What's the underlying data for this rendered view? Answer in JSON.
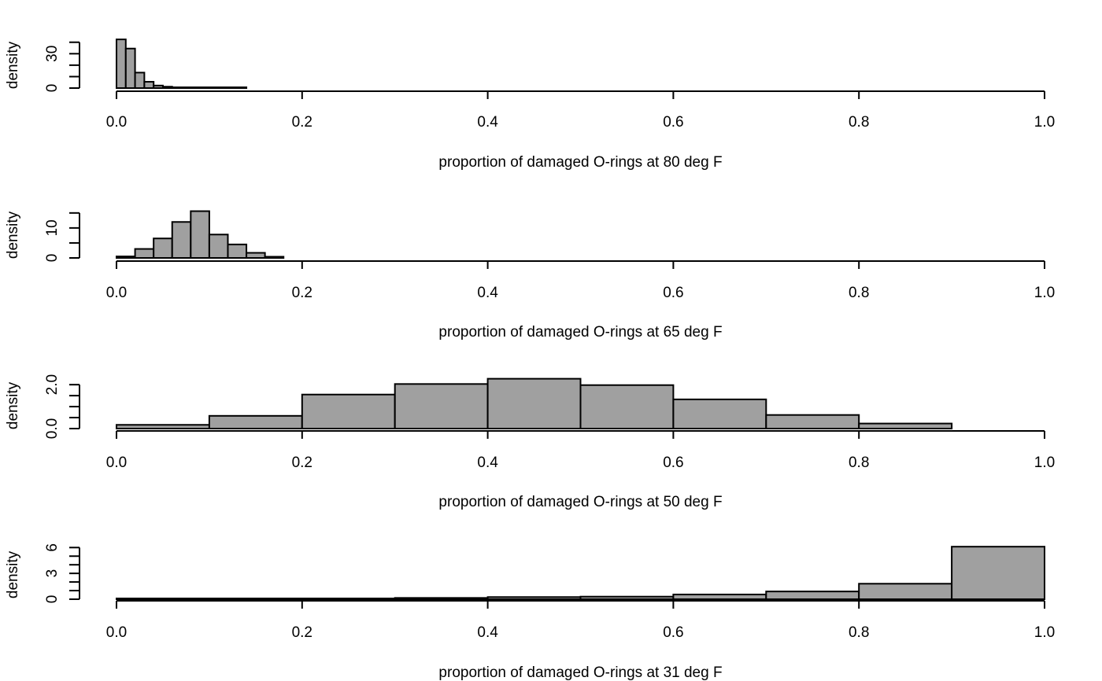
{
  "colors": {
    "bar_fill": "#a0a0a0",
    "bar_stroke": "#000000",
    "axis": "#000000"
  },
  "chart_data": [
    {
      "type": "bar",
      "xlabel": "proportion of damaged O-rings at 80 deg F",
      "ylabel": "density",
      "xlim": [
        0,
        1
      ],
      "ylim": [
        0,
        46
      ],
      "xticks": [
        "0.0",
        "0.2",
        "0.4",
        "0.6",
        "0.8",
        "1.0"
      ],
      "yticks": [
        "0",
        "30"
      ],
      "ytick_values": [
        0,
        30
      ],
      "ytick_minor": [
        0,
        10,
        20,
        30,
        40
      ],
      "bins": [
        {
          "x0": 0.0,
          "x1": 0.01,
          "y": 42.5
        },
        {
          "x0": 0.01,
          "x1": 0.02,
          "y": 34.5
        },
        {
          "x0": 0.02,
          "x1": 0.03,
          "y": 13.5
        },
        {
          "x0": 0.03,
          "x1": 0.04,
          "y": 5.5
        },
        {
          "x0": 0.04,
          "x1": 0.05,
          "y": 2.2
        },
        {
          "x0": 0.05,
          "x1": 0.06,
          "y": 1.2
        },
        {
          "x0": 0.06,
          "x1": 0.07,
          "y": 0.6
        },
        {
          "x0": 0.07,
          "x1": 0.08,
          "y": 0.5
        },
        {
          "x0": 0.08,
          "x1": 0.09,
          "y": 0.4
        },
        {
          "x0": 0.09,
          "x1": 0.1,
          "y": 0.3
        },
        {
          "x0": 0.1,
          "x1": 0.11,
          "y": 0.3
        },
        {
          "x0": 0.11,
          "x1": 0.12,
          "y": 0.3
        },
        {
          "x0": 0.12,
          "x1": 0.13,
          "y": 0.3
        },
        {
          "x0": 0.13,
          "x1": 0.14,
          "y": 0.3
        }
      ]
    },
    {
      "type": "bar",
      "xlabel": "proportion of damaged O-rings at 65 deg F",
      "ylabel": "density",
      "xlim": [
        0,
        1
      ],
      "ylim": [
        0,
        16
      ],
      "xticks": [
        "0.0",
        "0.2",
        "0.4",
        "0.6",
        "0.8",
        "1.0"
      ],
      "yticks": [
        "0",
        "10"
      ],
      "ytick_values": [
        0,
        10
      ],
      "ytick_minor": [
        0,
        5,
        10,
        15
      ],
      "bins": [
        {
          "x0": 0.0,
          "x1": 0.02,
          "y": 0.5
        },
        {
          "x0": 0.02,
          "x1": 0.04,
          "y": 3.0
        },
        {
          "x0": 0.04,
          "x1": 0.06,
          "y": 6.5
        },
        {
          "x0": 0.06,
          "x1": 0.08,
          "y": 12.0
        },
        {
          "x0": 0.08,
          "x1": 0.1,
          "y": 15.6
        },
        {
          "x0": 0.1,
          "x1": 0.12,
          "y": 7.8
        },
        {
          "x0": 0.12,
          "x1": 0.14,
          "y": 4.5
        },
        {
          "x0": 0.14,
          "x1": 0.16,
          "y": 1.7
        },
        {
          "x0": 0.16,
          "x1": 0.18,
          "y": 0.4
        }
      ]
    },
    {
      "type": "bar",
      "xlabel": "proportion of damaged O-rings at 50 deg F",
      "ylabel": "density",
      "xlim": [
        0,
        1
      ],
      "ylim": [
        0,
        2.4
      ],
      "xticks": [
        "0.0",
        "0.2",
        "0.4",
        "0.6",
        "0.8",
        "1.0"
      ],
      "yticks": [
        "0.0",
        "2.0"
      ],
      "ytick_values": [
        0,
        2
      ],
      "ytick_minor": [
        0,
        0.5,
        1.0,
        1.5,
        2.0
      ],
      "bins": [
        {
          "x0": 0.0,
          "x1": 0.1,
          "y": 0.17
        },
        {
          "x0": 0.1,
          "x1": 0.2,
          "y": 0.58
        },
        {
          "x0": 0.2,
          "x1": 0.3,
          "y": 1.55
        },
        {
          "x0": 0.3,
          "x1": 0.4,
          "y": 2.03
        },
        {
          "x0": 0.4,
          "x1": 0.5,
          "y": 2.27
        },
        {
          "x0": 0.5,
          "x1": 0.6,
          "y": 1.98
        },
        {
          "x0": 0.6,
          "x1": 0.7,
          "y": 1.33
        },
        {
          "x0": 0.7,
          "x1": 0.8,
          "y": 0.62
        },
        {
          "x0": 0.8,
          "x1": 0.9,
          "y": 0.23
        }
      ]
    },
    {
      "type": "bar",
      "xlabel": "proportion of damaged O-rings at 31 deg F",
      "ylabel": "density",
      "xlim": [
        0,
        1
      ],
      "ylim": [
        0,
        6.3
      ],
      "xticks": [
        "0.0",
        "0.2",
        "0.4",
        "0.6",
        "0.8",
        "1.0"
      ],
      "yticks": [
        "0",
        "3",
        "6"
      ],
      "ytick_values": [
        0,
        3,
        6
      ],
      "ytick_minor": [
        0,
        1,
        2,
        3,
        4,
        5,
        6
      ],
      "bins": [
        {
          "x0": 0.0,
          "x1": 0.1,
          "y": 0.03
        },
        {
          "x0": 0.1,
          "x1": 0.2,
          "y": 0.05
        },
        {
          "x0": 0.2,
          "x1": 0.3,
          "y": 0.08
        },
        {
          "x0": 0.3,
          "x1": 0.4,
          "y": 0.15
        },
        {
          "x0": 0.4,
          "x1": 0.5,
          "y": 0.25
        },
        {
          "x0": 0.5,
          "x1": 0.6,
          "y": 0.3
        },
        {
          "x0": 0.6,
          "x1": 0.7,
          "y": 0.55
        },
        {
          "x0": 0.7,
          "x1": 0.8,
          "y": 0.9
        },
        {
          "x0": 0.8,
          "x1": 0.9,
          "y": 1.8
        },
        {
          "x0": 0.9,
          "x1": 1.0,
          "y": 6.1
        }
      ]
    }
  ]
}
